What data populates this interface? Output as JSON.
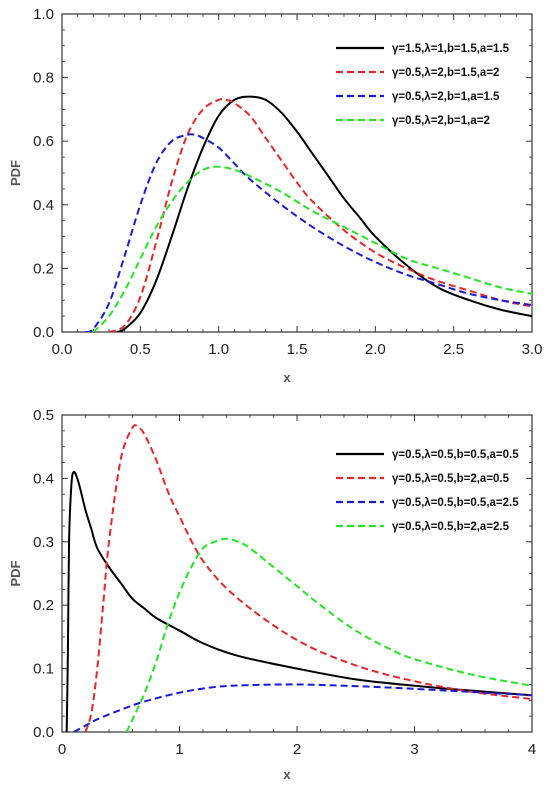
{
  "chart_data": [
    {
      "type": "line",
      "xlabel": "x",
      "ylabel": "PDF",
      "xlim": [
        0,
        3
      ],
      "ylim": [
        0,
        1
      ],
      "xticks": [
        "0.0",
        "0.5",
        "1.0",
        "1.5",
        "2.0",
        "2.5",
        "3.0"
      ],
      "yticks": [
        "0.0",
        "0.2",
        "0.4",
        "0.6",
        "0.8",
        "1.0"
      ],
      "legend_position": "top-right",
      "grid": false,
      "series": [
        {
          "name": "γ=1.5,λ=1,b=1.5,a=1.5",
          "color": "#000000",
          "dash": "solid",
          "x": [
            0.35,
            0.4,
            0.5,
            0.6,
            0.7,
            0.8,
            0.9,
            1.0,
            1.1,
            1.2,
            1.3,
            1.4,
            1.5,
            1.6,
            1.7,
            1.8,
            1.9,
            2.0,
            2.2,
            2.4,
            2.6,
            2.8,
            3.0
          ],
          "y": [
            0.0,
            0.01,
            0.06,
            0.16,
            0.3,
            0.45,
            0.58,
            0.68,
            0.73,
            0.74,
            0.73,
            0.69,
            0.63,
            0.56,
            0.49,
            0.42,
            0.36,
            0.3,
            0.21,
            0.14,
            0.1,
            0.07,
            0.05
          ]
        },
        {
          "name": "γ=0.5,λ=2,b=1.5,a=2",
          "color": "#e8262a",
          "dash": "dashed",
          "x": [
            0.3,
            0.4,
            0.5,
            0.6,
            0.7,
            0.8,
            0.9,
            1.0,
            1.05,
            1.1,
            1.2,
            1.3,
            1.4,
            1.5,
            1.6,
            1.8,
            2.0,
            2.2,
            2.4,
            2.6,
            2.8,
            3.0
          ],
          "y": [
            0.0,
            0.02,
            0.11,
            0.28,
            0.47,
            0.62,
            0.7,
            0.73,
            0.73,
            0.72,
            0.68,
            0.61,
            0.54,
            0.47,
            0.41,
            0.32,
            0.25,
            0.2,
            0.16,
            0.13,
            0.1,
            0.08
          ]
        },
        {
          "name": "γ=0.5,λ=2,b=1,a=1.5",
          "color": "#1a1adb",
          "dash": "dashed",
          "x": [
            0.15,
            0.2,
            0.3,
            0.4,
            0.5,
            0.6,
            0.7,
            0.8,
            0.85,
            0.9,
            1.0,
            1.1,
            1.2,
            1.4,
            1.6,
            1.8,
            2.0,
            2.2,
            2.4,
            2.6,
            2.8,
            3.0
          ],
          "y": [
            0.0,
            0.01,
            0.09,
            0.24,
            0.4,
            0.53,
            0.6,
            0.62,
            0.62,
            0.61,
            0.58,
            0.53,
            0.48,
            0.4,
            0.33,
            0.27,
            0.22,
            0.18,
            0.15,
            0.12,
            0.1,
            0.085
          ]
        },
        {
          "name": "γ=0.5,λ=2,b=1,a=2",
          "color": "#22e622",
          "dash": "dashed",
          "x": [
            0.2,
            0.3,
            0.4,
            0.5,
            0.6,
            0.7,
            0.8,
            0.9,
            1.0,
            1.1,
            1.2,
            1.4,
            1.6,
            1.8,
            2.0,
            2.2,
            2.4,
            2.6,
            2.8,
            3.0
          ],
          "y": [
            0.0,
            0.05,
            0.13,
            0.23,
            0.33,
            0.41,
            0.47,
            0.51,
            0.52,
            0.51,
            0.49,
            0.44,
            0.38,
            0.33,
            0.28,
            0.23,
            0.2,
            0.17,
            0.14,
            0.12
          ]
        }
      ]
    },
    {
      "type": "line",
      "xlabel": "x",
      "ylabel": "PDF",
      "xlim": [
        0,
        4
      ],
      "ylim": [
        0,
        0.5
      ],
      "xticks": [
        "0",
        "1",
        "2",
        "3",
        "4"
      ],
      "yticks": [
        "0.0",
        "0.1",
        "0.2",
        "0.3",
        "0.4",
        "0.5"
      ],
      "legend_position": "top-right",
      "grid": false,
      "series": [
        {
          "name": "γ=0.5,λ=0.5,b=0.5,a=0.5",
          "color": "#000000",
          "dash": "solid",
          "x": [
            0.04,
            0.05,
            0.06,
            0.08,
            0.1,
            0.13,
            0.16,
            0.2,
            0.25,
            0.3,
            0.4,
            0.5,
            0.6,
            0.7,
            0.8,
            1.0,
            1.2,
            1.5,
            2.0,
            2.5,
            3.0,
            3.5,
            4.0
          ],
          "y": [
            0.0,
            0.12,
            0.3,
            0.39,
            0.41,
            0.4,
            0.38,
            0.35,
            0.32,
            0.29,
            0.26,
            0.235,
            0.21,
            0.195,
            0.18,
            0.16,
            0.14,
            0.12,
            0.1,
            0.083,
            0.073,
            0.065,
            0.058
          ]
        },
        {
          "name": "γ=0.5,λ=0.5,b=2,a=0.5",
          "color": "#e8262a",
          "dash": "dashed",
          "x": [
            0.2,
            0.25,
            0.3,
            0.35,
            0.4,
            0.5,
            0.6,
            0.65,
            0.7,
            0.8,
            0.9,
            1.0,
            1.2,
            1.5,
            2.0,
            2.5,
            3.0,
            3.5,
            4.0
          ],
          "y": [
            0.0,
            0.03,
            0.1,
            0.2,
            0.3,
            0.43,
            0.48,
            0.48,
            0.47,
            0.43,
            0.38,
            0.34,
            0.27,
            0.21,
            0.145,
            0.105,
            0.08,
            0.063,
            0.052
          ]
        },
        {
          "name": "γ=0.5,λ=0.5,b=0.5,a=2.5",
          "color": "#1a1adb",
          "dash": "dashed",
          "x": [
            0.1,
            0.2,
            0.3,
            0.5,
            0.7,
            1.0,
            1.3,
            1.6,
            2.0,
            2.4,
            2.8,
            3.2,
            3.6,
            4.0
          ],
          "y": [
            0.0,
            0.01,
            0.02,
            0.035,
            0.048,
            0.062,
            0.071,
            0.074,
            0.075,
            0.073,
            0.07,
            0.066,
            0.062,
            0.058
          ]
        },
        {
          "name": "γ=0.5,λ=0.5,b=2,a=2.5",
          "color": "#22e622",
          "dash": "dashed",
          "x": [
            0.55,
            0.6,
            0.7,
            0.8,
            0.9,
            1.0,
            1.1,
            1.2,
            1.3,
            1.4,
            1.5,
            1.6,
            1.8,
            2.0,
            2.2,
            2.5,
            2.8,
            3.0,
            3.5,
            4.0
          ],
          "y": [
            0.0,
            0.02,
            0.06,
            0.11,
            0.17,
            0.22,
            0.26,
            0.29,
            0.3,
            0.305,
            0.3,
            0.29,
            0.26,
            0.23,
            0.2,
            0.16,
            0.13,
            0.115,
            0.09,
            0.073
          ]
        }
      ]
    }
  ]
}
